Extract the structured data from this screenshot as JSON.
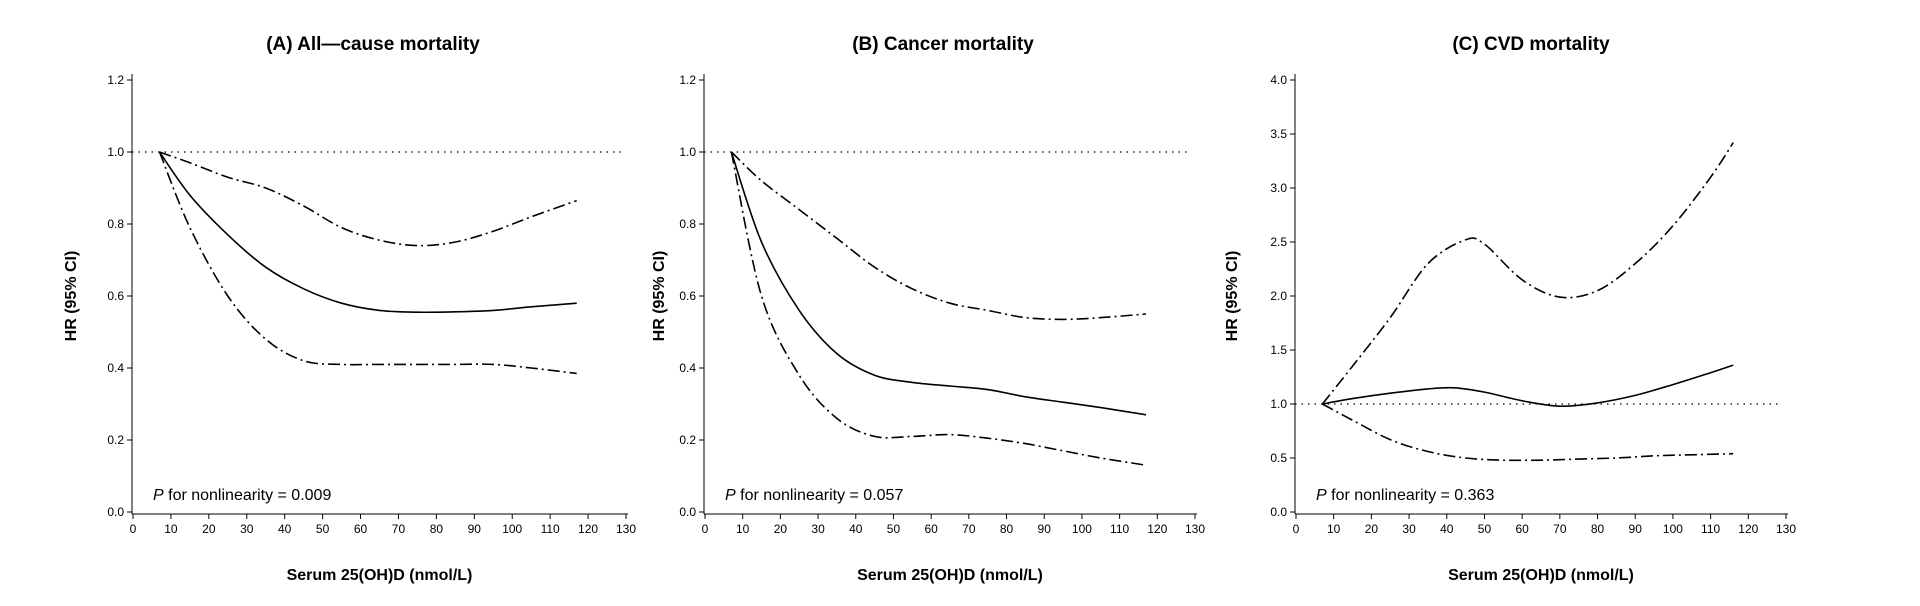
{
  "chart_data": [
    {
      "type": "line",
      "title": "(A)  All—cause mortality",
      "xlabel": "Serum 25(OH)D (nmol/L)",
      "ylabel": "HR (95% CI)",
      "xlim": [
        0,
        130
      ],
      "ylim": [
        0,
        1.2
      ],
      "xticks": [
        0,
        10,
        20,
        30,
        40,
        50,
        60,
        70,
        80,
        90,
        100,
        110,
        120,
        130
      ],
      "yticks": [
        "0.0",
        "0.2",
        "0.4",
        "0.6",
        "0.8",
        "1.0",
        "1.2"
      ],
      "reference_line": 1.0,
      "annotation": {
        "p": "P",
        "rest": " for nonlinearity = 0.009"
      },
      "series": [
        {
          "style": "solid",
          "x": [
            7,
            15,
            25,
            35,
            45,
            55,
            65,
            75,
            85,
            95,
            105,
            117
          ],
          "y": [
            1.0,
            0.88,
            0.77,
            0.68,
            0.62,
            0.58,
            0.56,
            0.555,
            0.556,
            0.56,
            0.57,
            0.58
          ]
        },
        {
          "style": "dash-dot",
          "x": [
            7,
            15,
            25,
            35,
            45,
            55,
            65,
            75,
            85,
            95,
            105,
            117
          ],
          "y": [
            1.0,
            0.97,
            0.93,
            0.9,
            0.85,
            0.79,
            0.755,
            0.74,
            0.75,
            0.78,
            0.82,
            0.865
          ]
        },
        {
          "style": "dash-dot",
          "x": [
            7,
            15,
            25,
            35,
            45,
            55,
            65,
            75,
            85,
            95,
            105,
            117
          ],
          "y": [
            1.0,
            0.79,
            0.6,
            0.48,
            0.42,
            0.41,
            0.41,
            0.41,
            0.41,
            0.41,
            0.4,
            0.385
          ]
        }
      ]
    },
    {
      "type": "line",
      "title": "(B)  Cancer mortality",
      "xlabel": "Serum 25(OH)D (nmol/L)",
      "ylabel": "HR (95% CI)",
      "xlim": [
        0,
        130
      ],
      "ylim": [
        0,
        1.2
      ],
      "xticks": [
        0,
        10,
        20,
        30,
        40,
        50,
        60,
        70,
        80,
        90,
        100,
        110,
        120,
        130
      ],
      "yticks": [
        "0.0",
        "0.2",
        "0.4",
        "0.6",
        "0.8",
        "1.0",
        "1.2"
      ],
      "reference_line": 1.0,
      "annotation": {
        "p": "P",
        "rest": " for nonlinearity = 0.057"
      },
      "series": [
        {
          "style": "solid",
          "x": [
            7,
            15,
            25,
            35,
            45,
            55,
            65,
            75,
            85,
            95,
            105,
            117
          ],
          "y": [
            1.0,
            0.75,
            0.56,
            0.44,
            0.38,
            0.36,
            0.35,
            0.34,
            0.32,
            0.305,
            0.29,
            0.27
          ]
        },
        {
          "style": "dash-dot",
          "x": [
            7,
            15,
            25,
            35,
            45,
            55,
            65,
            75,
            85,
            95,
            105,
            117
          ],
          "y": [
            1.0,
            0.92,
            0.84,
            0.76,
            0.68,
            0.62,
            0.58,
            0.56,
            0.54,
            0.535,
            0.54,
            0.55
          ]
        },
        {
          "style": "dash-dot",
          "x": [
            7,
            15,
            25,
            35,
            45,
            55,
            65,
            75,
            85,
            95,
            105,
            117
          ],
          "y": [
            1.0,
            0.6,
            0.38,
            0.26,
            0.21,
            0.21,
            0.215,
            0.205,
            0.19,
            0.17,
            0.15,
            0.13
          ]
        }
      ]
    },
    {
      "type": "line",
      "title": "(C)  CVD mortality",
      "xlabel": "Serum 25(OH)D (nmol/L)",
      "ylabel": "HR (95% CI)",
      "xlim": [
        0,
        130
      ],
      "ylim": [
        0,
        4.0
      ],
      "xticks": [
        0,
        10,
        20,
        30,
        40,
        50,
        60,
        70,
        80,
        90,
        100,
        110,
        120,
        130
      ],
      "yticks": [
        "0.0",
        "0.5",
        "1.0",
        "1.5",
        "2.0",
        "2.5",
        "3.0",
        "3.5",
        "4.0"
      ],
      "reference_line": 1.0,
      "annotation": {
        "p": "P",
        "rest": " for nonlinearity = 0.363"
      },
      "series": [
        {
          "style": "solid",
          "x": [
            7,
            15,
            25,
            35,
            42,
            50,
            60,
            70,
            80,
            90,
            100,
            110,
            116
          ],
          "y": [
            1.0,
            1.05,
            1.1,
            1.14,
            1.15,
            1.11,
            1.03,
            0.98,
            1.01,
            1.08,
            1.18,
            1.29,
            1.36
          ]
        },
        {
          "style": "dash-dot",
          "x": [
            7,
            15,
            25,
            35,
            45,
            50,
            60,
            70,
            80,
            90,
            100,
            110,
            116
          ],
          "y": [
            1.0,
            1.35,
            1.8,
            2.3,
            2.52,
            2.48,
            2.15,
            1.99,
            2.05,
            2.3,
            2.65,
            3.1,
            3.42
          ]
        },
        {
          "style": "dash-dot",
          "x": [
            7,
            15,
            25,
            35,
            45,
            55,
            65,
            75,
            85,
            95,
            105,
            116
          ],
          "y": [
            1.0,
            0.85,
            0.67,
            0.56,
            0.5,
            0.48,
            0.48,
            0.49,
            0.5,
            0.52,
            0.53,
            0.54
          ]
        }
      ]
    }
  ]
}
